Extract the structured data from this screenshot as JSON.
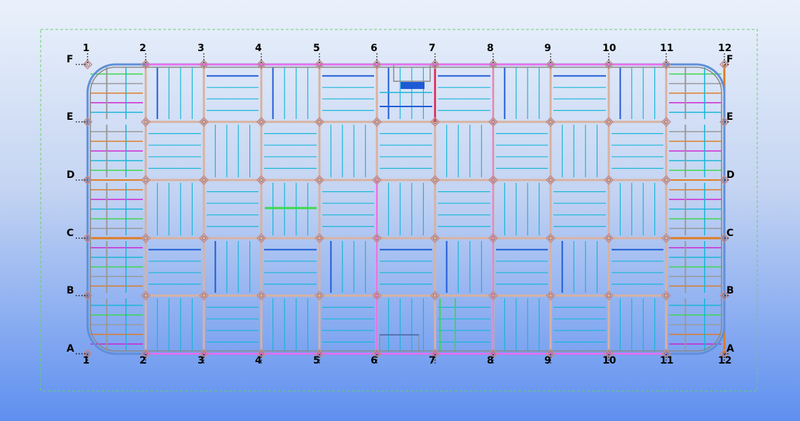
{
  "grid": {
    "columns": [
      "1",
      "2",
      "3",
      "4",
      "5",
      "6",
      "7",
      "8",
      "9",
      "10",
      "11",
      "12"
    ],
    "rows": [
      "F",
      "E",
      "D",
      "C",
      "B",
      "A"
    ]
  },
  "colors": {
    "frame": "#f06cf0",
    "beam_light": "#d9b2a0",
    "joist": "#16b6d8",
    "joist_dark": "#1e5ad6",
    "bracing": "#3ad94a",
    "steel": "#e07b20",
    "column": "#c18b8b",
    "grid_dash": "#000000",
    "work_area": "#64d264"
  }
}
